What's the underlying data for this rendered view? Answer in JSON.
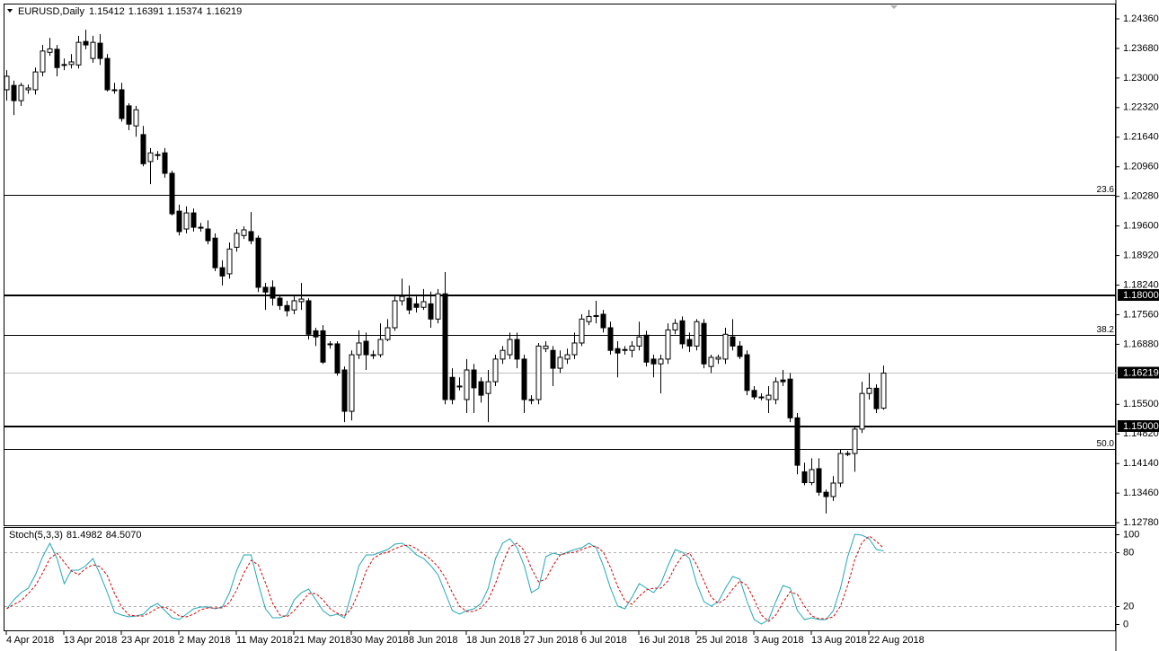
{
  "chart_data": [
    {
      "type": "candlestick",
      "title": "EURUSD,Daily",
      "header_values": [
        "1.15412",
        "1.16391",
        "1.15374",
        "1.16219"
      ],
      "categories": [
        "4 Apr 2018",
        null,
        null,
        null,
        null,
        null,
        null,
        null,
        "13 Apr 2018",
        null,
        null,
        null,
        null,
        null,
        null,
        null,
        "23 Apr 2018",
        null,
        null,
        null,
        null,
        null,
        null,
        null,
        "2 May 2018",
        null,
        null,
        null,
        null,
        null,
        null,
        null,
        "11 May 2018",
        null,
        null,
        null,
        null,
        null,
        null,
        null,
        "21 May 2018",
        null,
        null,
        null,
        null,
        null,
        null,
        null,
        "30 May 2018",
        null,
        null,
        null,
        null,
        null,
        null,
        null,
        "8 Jun 2018",
        null,
        null,
        null,
        null,
        null,
        null,
        null,
        "18 Jun 2018",
        null,
        null,
        null,
        null,
        null,
        null,
        null,
        "27 Jun 2018",
        null,
        null,
        null,
        null,
        null,
        null,
        null,
        "6 Jul 2018",
        null,
        null,
        null,
        null,
        null,
        null,
        null,
        "16 Jul 2018",
        null,
        null,
        null,
        null,
        null,
        null,
        null,
        "25 Jul 2018",
        null,
        null,
        null,
        null,
        null,
        null,
        null,
        "3 Aug 2018",
        null,
        null,
        null,
        null,
        null,
        null,
        null,
        "13 Aug 2018",
        null,
        null,
        null,
        null,
        null,
        null,
        null,
        "22 Aug 2018",
        null,
        null
      ],
      "ohlc": [
        [
          1.2273,
          1.2318,
          1.2248,
          1.2304
        ],
        [
          1.2283,
          1.2294,
          1.2215,
          1.2248
        ],
        [
          1.2248,
          1.2289,
          1.2236,
          1.2283
        ],
        [
          1.2273,
          1.2285,
          1.2264,
          1.2277
        ],
        [
          1.2273,
          1.2324,
          1.2262,
          1.2314
        ],
        [
          1.2314,
          1.2376,
          1.2304,
          1.2362
        ],
        [
          1.2359,
          1.2392,
          1.2351,
          1.2367
        ],
        [
          1.2366,
          1.2376,
          1.2304,
          1.2324
        ],
        [
          1.233,
          1.2345,
          1.2318,
          1.2331
        ],
        [
          1.2331,
          1.2355,
          1.2322,
          1.2337
        ],
        [
          1.233,
          1.2397,
          1.2322,
          1.2382
        ],
        [
          1.2384,
          1.2411,
          1.2366,
          1.2376
        ],
        [
          1.2345,
          1.2397,
          1.2335,
          1.2382
        ],
        [
          1.238,
          1.2401,
          1.233,
          1.2345
        ],
        [
          1.2345,
          1.2355,
          1.2269,
          1.2273
        ],
        [
          1.2273,
          1.2289,
          1.2264,
          1.2271
        ],
        [
          1.2273,
          1.2289,
          1.22,
          1.2207
        ],
        [
          1.2236,
          1.2242,
          1.218,
          1.2194
        ],
        [
          1.219,
          1.2236,
          1.2165,
          1.2227
        ],
        [
          1.217,
          1.219,
          1.2097,
          1.2103
        ],
        [
          1.2108,
          1.2139,
          1.2056,
          1.2128
        ],
        [
          1.2124,
          1.2132,
          1.2112,
          1.2124
        ],
        [
          1.2128,
          1.2139,
          1.2071,
          1.2081
        ],
        [
          1.2081,
          1.2087,
          1.1984,
          1.1988
        ],
        [
          1.1994,
          1.2009,
          1.1938,
          1.1947
        ],
        [
          1.1953,
          1.2005,
          1.1943,
          1.199
        ],
        [
          1.199,
          1.2,
          1.1947,
          1.1957
        ],
        [
          1.1957,
          1.1967,
          1.1947,
          1.1955
        ],
        [
          1.1953,
          1.1973,
          1.1918,
          1.1926
        ],
        [
          1.1932,
          1.1943,
          1.1856,
          1.1864
        ],
        [
          1.1864,
          1.1881,
          1.1823,
          1.1845
        ],
        [
          1.185,
          1.1922,
          1.1839,
          1.1907
        ],
        [
          1.1911,
          1.1953,
          1.1901,
          1.1943
        ],
        [
          1.1938,
          1.1959,
          1.193,
          1.1951
        ],
        [
          1.1947,
          1.1992,
          1.1918,
          1.1926
        ],
        [
          1.1932,
          1.1938,
          1.1808,
          1.1819
        ],
        [
          1.1819,
          1.1829,
          1.1767,
          1.1808
        ],
        [
          1.1819,
          1.1835,
          1.1777,
          1.1794
        ],
        [
          1.1794,
          1.1802,
          1.1767,
          1.1777
        ],
        [
          1.1777,
          1.1788,
          1.1752,
          1.1765
        ],
        [
          1.1767,
          1.1798,
          1.1757,
          1.1788
        ],
        [
          1.1786,
          1.1829,
          1.1767,
          1.1792
        ],
        [
          1.1788,
          1.1794,
          1.1699,
          1.1711
        ],
        [
          1.1719,
          1.1726,
          1.1684,
          1.1705
        ],
        [
          1.1719,
          1.1732,
          1.1643,
          1.1647
        ],
        [
          1.1689,
          1.1695,
          1.1678,
          1.1687
        ],
        [
          1.1689,
          1.1695,
          1.1616,
          1.1622
        ],
        [
          1.1629,
          1.1637,
          1.1509,
          1.1534
        ],
        [
          1.1534,
          1.1674,
          1.1513,
          1.1664
        ],
        [
          1.1664,
          1.172,
          1.1654,
          1.1691
        ],
        [
          1.1695,
          1.1715,
          1.1629,
          1.1664
        ],
        [
          1.1664,
          1.1674,
          1.1654,
          1.1662
        ],
        [
          1.1664,
          1.1736,
          1.1658,
          1.1699
        ],
        [
          1.1699,
          1.1746,
          1.1695,
          1.1726
        ],
        [
          1.1726,
          1.1798,
          1.1719,
          1.1788
        ],
        [
          1.1788,
          1.1839,
          1.1777,
          1.1798
        ],
        [
          1.1794,
          1.1823,
          1.1757,
          1.1767
        ],
        [
          1.1781,
          1.1798,
          1.1761,
          1.1773
        ],
        [
          1.1773,
          1.1815,
          1.1767,
          1.1786
        ],
        [
          1.1781,
          1.1809,
          1.1726,
          1.1746
        ],
        [
          1.1746,
          1.1815,
          1.1736,
          1.1804
        ],
        [
          1.1804,
          1.1854,
          1.155,
          1.1561
        ],
        [
          1.1612,
          1.1633,
          1.155,
          1.1561
        ],
        [
          1.1592,
          1.1612,
          1.1582,
          1.159
        ],
        [
          1.1561,
          1.1654,
          1.153,
          1.1629
        ],
        [
          1.1629,
          1.1643,
          1.153,
          1.1588
        ],
        [
          1.1602,
          1.1612,
          1.1554,
          1.1571
        ],
        [
          1.1575,
          1.1629,
          1.1509,
          1.1602
        ],
        [
          1.1602,
          1.1664,
          1.1592,
          1.1654
        ],
        [
          1.1654,
          1.1684,
          1.1643,
          1.1674
        ],
        [
          1.1664,
          1.1715,
          1.1654,
          1.1699
        ],
        [
          1.1699,
          1.1715,
          1.1633,
          1.1654
        ],
        [
          1.1654,
          1.1664,
          1.153,
          1.1561
        ],
        [
          1.1561,
          1.1571,
          1.155,
          1.1559
        ],
        [
          1.1561,
          1.1691,
          1.155,
          1.1684
        ],
        [
          1.1678,
          1.1695,
          1.167,
          1.1684
        ],
        [
          1.1674,
          1.1684,
          1.1592,
          1.1633
        ],
        [
          1.1633,
          1.1674,
          1.1622,
          1.1658
        ],
        [
          1.1654,
          1.1678,
          1.1643,
          1.1664
        ],
        [
          1.1664,
          1.1715,
          1.1654,
          1.1691
        ],
        [
          1.1691,
          1.1757,
          1.1684,
          1.1746
        ],
        [
          1.174,
          1.1767,
          1.1732,
          1.1752
        ],
        [
          1.1752,
          1.1788,
          1.1736,
          1.1754
        ],
        [
          1.1757,
          1.1767,
          1.1715,
          1.1726
        ],
        [
          1.1726,
          1.174,
          1.1664,
          1.1674
        ],
        [
          1.1678,
          1.1695,
          1.1612,
          1.1668
        ],
        [
          1.1674,
          1.1684,
          1.1664,
          1.1676
        ],
        [
          1.1674,
          1.1695,
          1.1658,
          1.1684
        ],
        [
          1.1684,
          1.174,
          1.1674,
          1.1705
        ],
        [
          1.1709,
          1.1719,
          1.1637,
          1.1647
        ],
        [
          1.1654,
          1.1664,
          1.1612,
          1.1643
        ],
        [
          1.1643,
          1.1664,
          1.1575,
          1.1654
        ],
        [
          1.1654,
          1.1736,
          1.1643,
          1.1721
        ],
        [
          1.1721,
          1.1746,
          1.1711,
          1.1736
        ],
        [
          1.1742,
          1.1752,
          1.1678,
          1.1689
        ],
        [
          1.1699,
          1.1715,
          1.167,
          1.1684
        ],
        [
          1.1684,
          1.1746,
          1.1674,
          1.174
        ],
        [
          1.1736,
          1.1746,
          1.1633,
          1.1643
        ],
        [
          1.1637,
          1.1664,
          1.1622,
          1.1658
        ],
        [
          1.1654,
          1.1664,
          1.1643,
          1.1658
        ],
        [
          1.1654,
          1.1726,
          1.1643,
          1.1711
        ],
        [
          1.1705,
          1.1746,
          1.1674,
          1.1684
        ],
        [
          1.1684,
          1.1695,
          1.1654,
          1.166
        ],
        [
          1.1664,
          1.1674,
          1.1571,
          1.1582
        ],
        [
          1.1582,
          1.1592,
          1.1561,
          1.1567
        ],
        [
          1.1567,
          1.1575,
          1.1559,
          1.1565
        ],
        [
          1.1561,
          1.1592,
          1.153,
          1.1571
        ],
        [
          1.1561,
          1.1612,
          1.155,
          1.1602
        ],
        [
          1.1606,
          1.1629,
          1.1592,
          1.1602
        ],
        [
          1.1608,
          1.1622,
          1.1509,
          1.1519
        ],
        [
          1.1519,
          1.153,
          1.1389,
          1.141
        ],
        [
          1.1395,
          1.1416,
          1.1364,
          1.137
        ],
        [
          1.137,
          1.1426,
          1.1364,
          1.14
        ],
        [
          1.1402,
          1.1426,
          1.134,
          1.1348
        ],
        [
          1.1348,
          1.1354,
          1.1299,
          1.1338
        ],
        [
          1.1338,
          1.1385,
          1.1328,
          1.1369
        ],
        [
          1.1369,
          1.1447,
          1.136,
          1.1437
        ],
        [
          1.1437,
          1.1443,
          1.1431,
          1.1435
        ],
        [
          1.1437,
          1.1499,
          1.1395,
          1.1493
        ],
        [
          1.1493,
          1.1602,
          1.1484,
          1.1575
        ],
        [
          1.1575,
          1.1622,
          1.1561,
          1.1587
        ],
        [
          1.1587,
          1.1596,
          1.153,
          1.154
        ],
        [
          1.15412,
          1.16391,
          1.15374,
          1.16219
        ]
      ],
      "up_color": "#ffffff",
      "down_color": "#000000",
      "outline_color": "#000000",
      "ylim": [
        1.1272,
        1.2469
      ],
      "yticks": [
        {
          "value": 1.2436,
          "label": "1.24360"
        },
        {
          "value": 1.2368,
          "label": "1.23680"
        },
        {
          "value": 1.23,
          "label": "1.23000"
        },
        {
          "value": 1.2232,
          "label": "1.22320"
        },
        {
          "value": 1.2164,
          "label": "1.21640"
        },
        {
          "value": 1.2096,
          "label": "1.20960"
        },
        {
          "value": 1.2028,
          "label": "1.20280"
        },
        {
          "value": 1.196,
          "label": "1.19600"
        },
        {
          "value": 1.1892,
          "label": "1.18920"
        },
        {
          "value": 1.1824,
          "label": "1.18240"
        },
        {
          "value": 1.1756,
          "label": "1.17560"
        },
        {
          "value": 1.1688,
          "label": "1.16880"
        },
        {
          "value": 1.155,
          "label": "1.15500"
        },
        {
          "value": 1.1482,
          "label": "1.14820"
        },
        {
          "value": 1.1414,
          "label": "1.14140"
        },
        {
          "value": 1.1346,
          "label": "1.13460"
        },
        {
          "value": 1.1278,
          "label": "1.12780"
        }
      ],
      "levels": [
        {
          "value": 1.2032,
          "label": "23.6"
        },
        {
          "value": 1.171,
          "label": "38.2"
        },
        {
          "value": 1.1447,
          "label": "50.0"
        }
      ],
      "hlines": [
        {
          "value": 1.18,
          "label": "1.18000"
        },
        {
          "value": 1.15,
          "label": "1.15000"
        }
      ],
      "last_price": {
        "value": 1.16219,
        "label": "1.16219"
      }
    },
    {
      "type": "line",
      "title": "Stoch(5,3,3)",
      "title_values": [
        "81.4982",
        "84.5070"
      ],
      "series": [
        {
          "color": "#20a8b8",
          "dashed": false,
          "values": [
            17,
            27,
            35,
            40,
            55,
            75,
            90,
            73,
            45,
            60,
            60,
            65,
            73,
            55,
            35,
            13,
            10,
            8,
            9,
            11,
            19,
            23,
            15,
            7,
            5,
            11,
            17,
            19,
            19,
            17,
            19,
            35,
            60,
            77,
            77,
            45,
            17,
            7,
            7,
            10,
            27,
            35,
            39,
            27,
            15,
            9,
            11,
            7,
            35,
            65,
            77,
            77,
            80,
            83,
            89,
            90,
            85,
            77,
            73,
            65,
            55,
            35,
            15,
            11,
            15,
            17,
            23,
            40,
            73,
            90,
            95,
            85,
            65,
            35,
            40,
            75,
            79,
            77,
            80,
            83,
            85,
            90,
            85,
            65,
            40,
            20,
            17,
            30,
            45,
            40,
            35,
            45,
            65,
            83,
            80,
            73,
            45,
            25,
            20,
            25,
            40,
            53,
            50,
            25,
            5,
            0,
            5,
            25,
            43,
            40,
            15,
            5,
            7,
            5,
            5,
            15,
            40,
            75,
            100,
            99,
            95,
            83,
            81.4982
          ]
        },
        {
          "color": "#e00000",
          "dashed": true,
          "values": [
            17,
            22,
            26,
            34,
            43,
            57,
            73,
            79,
            69,
            59,
            55,
            62,
            66,
            64,
            54,
            34,
            19,
            10,
            9,
            9,
            13,
            18,
            19,
            15,
            9,
            8,
            11,
            16,
            18,
            18,
            18,
            24,
            38,
            57,
            71,
            66,
            46,
            23,
            10,
            8,
            15,
            24,
            34,
            34,
            27,
            17,
            12,
            9,
            18,
            36,
            59,
            73,
            78,
            80,
            84,
            87,
            88,
            84,
            78,
            72,
            64,
            52,
            35,
            20,
            14,
            14,
            18,
            27,
            45,
            68,
            86,
            90,
            82,
            62,
            47,
            50,
            65,
            77,
            79,
            80,
            83,
            86,
            87,
            80,
            63,
            42,
            26,
            22,
            31,
            38,
            40,
            40,
            48,
            64,
            76,
            79,
            66,
            48,
            30,
            23,
            28,
            39,
            48,
            43,
            27,
            10,
            3,
            10,
            24,
            36,
            33,
            20,
            9,
            6,
            6,
            8,
            20,
            43,
            72,
            91,
            98,
            92,
            84.507
          ]
        }
      ],
      "ylim": [
        -8,
        107
      ],
      "yticks": [
        0,
        20,
        80,
        100
      ]
    }
  ]
}
